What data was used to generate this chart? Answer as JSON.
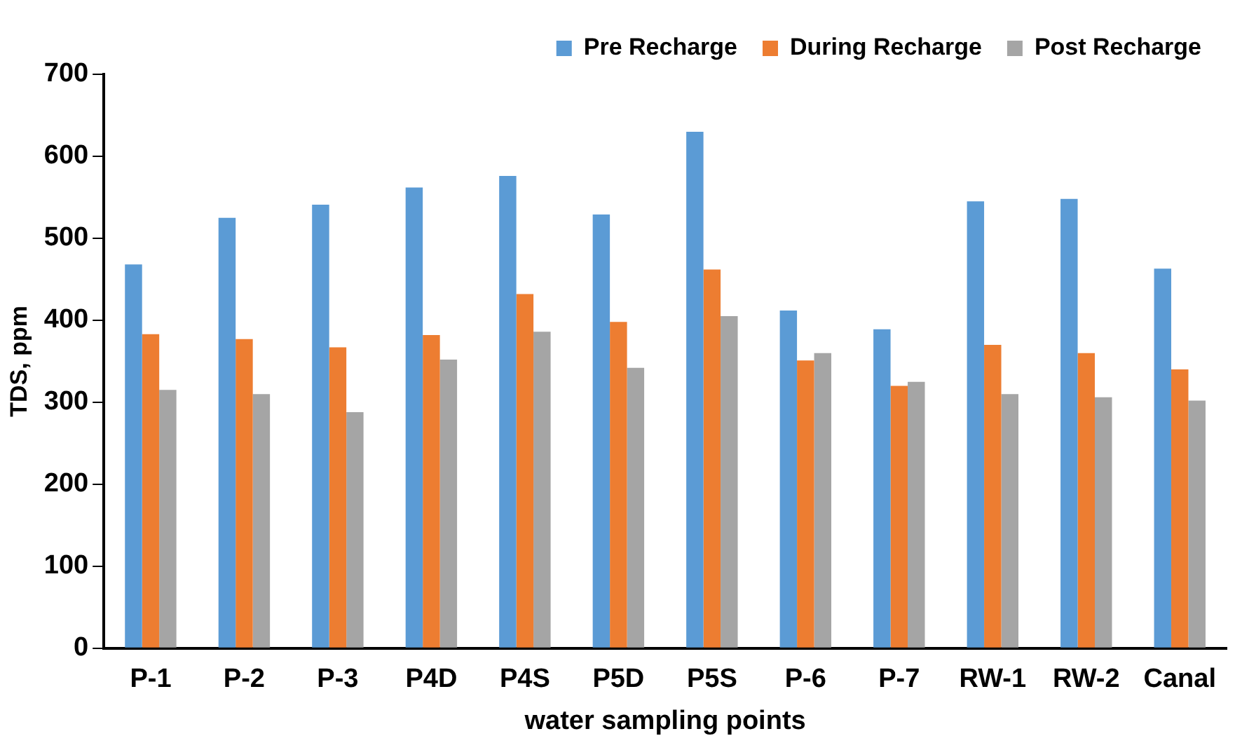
{
  "chart_data": {
    "type": "bar",
    "xlabel": "water sampling points",
    "ylabel": "TDS, ppm",
    "categories": [
      "P-1",
      "P-2",
      "P-3",
      "P4D",
      "P4S",
      "P5D",
      "P5S",
      "P-6",
      "P-7",
      "RW-1",
      "RW-2",
      "Canal"
    ],
    "series": [
      {
        "name": "Pre Recharge",
        "color": "#5b9bd5",
        "values": [
          468,
          525,
          541,
          562,
          576,
          529,
          630,
          412,
          389,
          545,
          548,
          463
        ]
      },
      {
        "name": "During Recharge",
        "color": "#ed7d31",
        "values": [
          383,
          377,
          367,
          382,
          432,
          398,
          462,
          351,
          320,
          370,
          360,
          340
        ]
      },
      {
        "name": "Post Recharge",
        "color": "#a5a5a5",
        "values": [
          315,
          310,
          288,
          352,
          386,
          342,
          405,
          360,
          325,
          310,
          306,
          302
        ]
      }
    ],
    "ylim": [
      0,
      700
    ],
    "yticks": [
      0,
      100,
      200,
      300,
      400,
      500,
      600,
      700
    ],
    "grid": false,
    "legend": "top right"
  }
}
